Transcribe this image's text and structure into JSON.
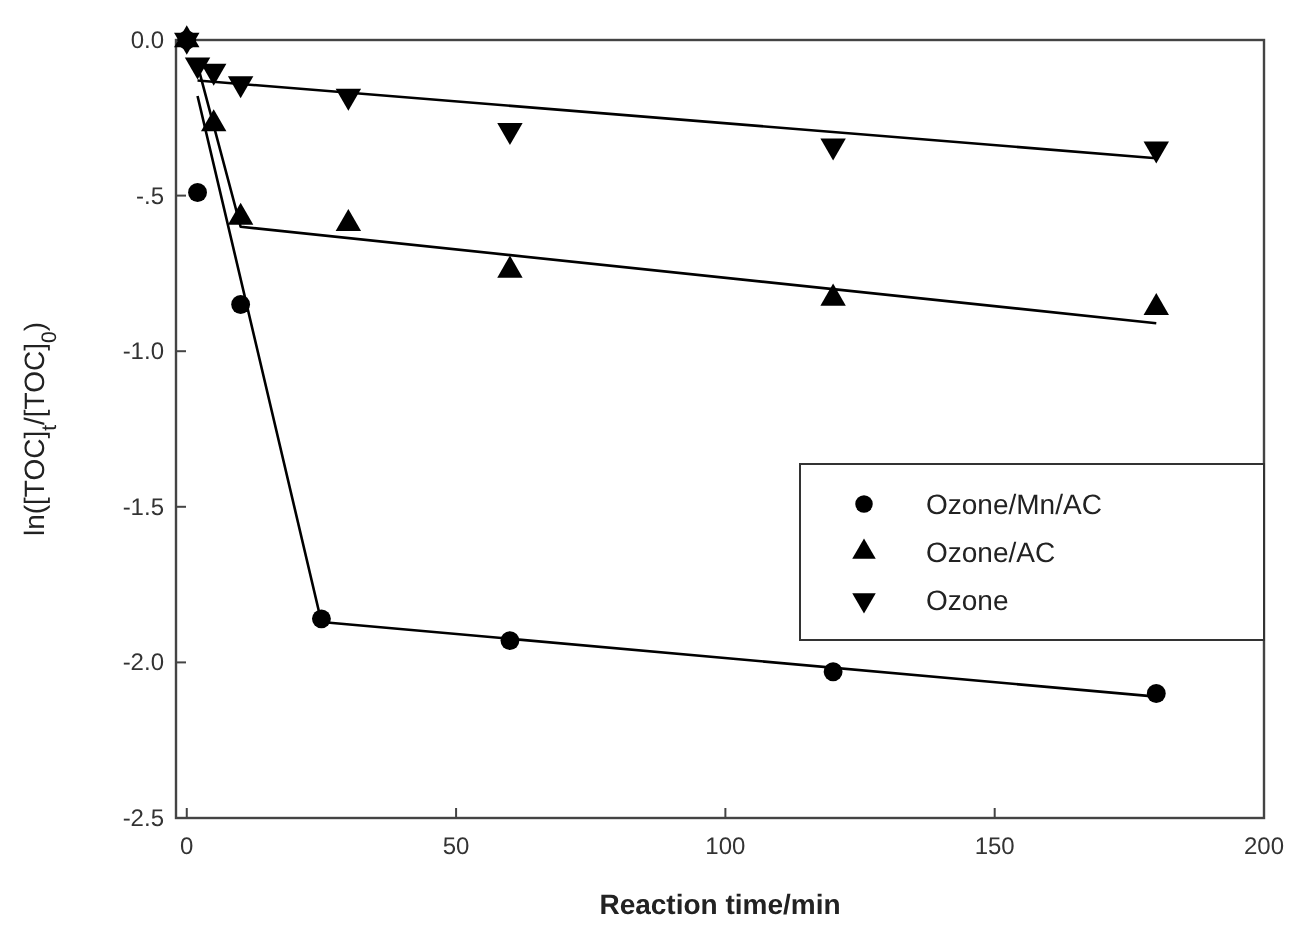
{
  "chart_data": {
    "type": "scatter",
    "xlabel": "Reaction time/min",
    "ylabel": "ln([TOC]$_{t}$/[TOC]$_{0}$)",
    "xlim": [
      -2,
      200
    ],
    "xticks": [
      0,
      50,
      100,
      150,
      200
    ],
    "ylim": [
      -2.5,
      0
    ],
    "yticks": [
      {
        "value": 0,
        "label": "0.0"
      },
      {
        "value": -0.5,
        "label": "-.5"
      },
      {
        "value": -1,
        "label": "-1.0"
      },
      {
        "value": -1.5,
        "label": "-1.5"
      },
      {
        "value": -2,
        "label": "-2.0"
      },
      {
        "value": -2.5,
        "label": "-2.5"
      }
    ],
    "grid": false,
    "legend": "right",
    "series": [
      {
        "name": "Ozone/Mn/AC",
        "color": "#000000",
        "marker": "circle",
        "x": [
          0,
          2,
          10,
          25,
          60,
          120,
          180
        ],
        "values": [
          0,
          -0.49,
          -0.85,
          -1.86,
          -1.93,
          -2.03,
          -2.1
        ]
      },
      {
        "name": "Ozone/AC",
        "color": "#000000",
        "marker": "triangle",
        "x": [
          0,
          5,
          10,
          30,
          60,
          120,
          180
        ],
        "values": [
          0,
          -0.27,
          -0.57,
          -0.59,
          -0.74,
          -0.83,
          -0.86
        ]
      },
      {
        "name": "Ozone",
        "color": "#000000",
        "marker": "triangle-down",
        "x": [
          0,
          2,
          5,
          10,
          30,
          60,
          120,
          180
        ],
        "values": [
          0,
          -0.08,
          -0.1,
          -0.14,
          -0.18,
          -0.29,
          -0.34,
          -0.35
        ]
      },
      {
        "type": "line",
        "color": "#000000",
        "marker": "none",
        "x": [
          2,
          25,
          180
        ],
        "values": [
          -0.18,
          -1.87,
          -2.11
        ]
      },
      {
        "type": "line",
        "color": "#000000",
        "marker": "none",
        "x": [
          2,
          10,
          180
        ],
        "values": [
          -0.08,
          -0.6,
          -0.91
        ]
      },
      {
        "type": "line",
        "color": "#000000",
        "marker": "none",
        "x": [
          2,
          180
        ],
        "values": [
          -0.13,
          -0.38
        ]
      }
    ]
  }
}
